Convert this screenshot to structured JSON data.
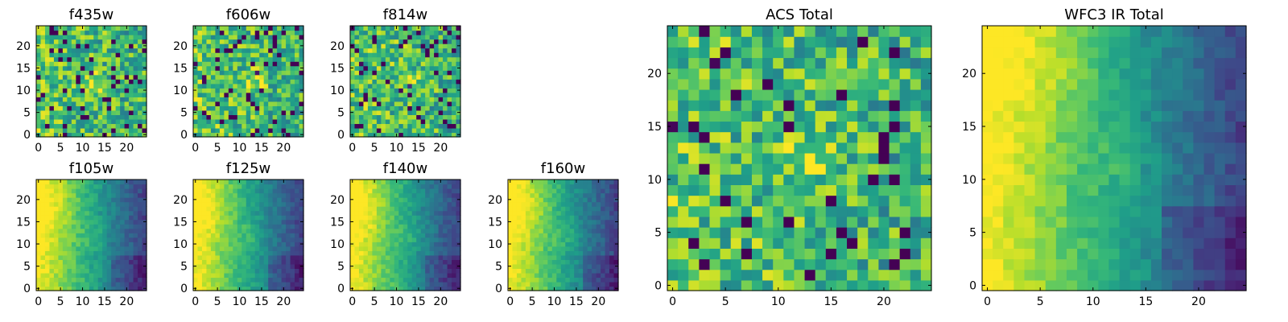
{
  "chart_data": [
    {
      "type": "heatmap",
      "title": "f435w",
      "colormap": "viridis",
      "grid": "25x25",
      "style": "noisy",
      "xticks": [
        "0",
        "5",
        "10",
        "15",
        "20"
      ],
      "yticks": [
        "0",
        "5",
        "10",
        "15",
        "20"
      ],
      "xlim": [
        0,
        24
      ],
      "ylim": [
        0,
        24
      ],
      "peak": [
        13,
        12
      ]
    },
    {
      "type": "heatmap",
      "title": "f606w",
      "colormap": "viridis",
      "grid": "25x25",
      "style": "noisy",
      "xticks": [
        "0",
        "5",
        "10",
        "15",
        "20"
      ],
      "yticks": [
        "0",
        "5",
        "10",
        "15",
        "20"
      ],
      "xlim": [
        0,
        24
      ],
      "ylim": [
        0,
        24
      ],
      "peak": [
        13,
        12
      ]
    },
    {
      "type": "heatmap",
      "title": "f814w",
      "colormap": "viridis",
      "grid": "25x25",
      "style": "noisy",
      "xticks": [
        "0",
        "5",
        "10",
        "15",
        "20"
      ],
      "yticks": [
        "0",
        "5",
        "10",
        "15",
        "20"
      ],
      "xlim": [
        0,
        24
      ],
      "ylim": [
        0,
        24
      ],
      "peak": [
        13,
        12
      ]
    },
    {
      "type": "heatmap",
      "title": "f105w",
      "colormap": "viridis",
      "grid": "25x25",
      "style": "smooth gradient",
      "xticks": [
        "0",
        "5",
        "10",
        "15",
        "20"
      ],
      "yticks": [
        "0",
        "5",
        "10",
        "15",
        "20"
      ],
      "xlim": [
        0,
        24
      ],
      "ylim": [
        0,
        24
      ],
      "peak": [
        2,
        18
      ]
    },
    {
      "type": "heatmap",
      "title": "f125w",
      "colormap": "viridis",
      "grid": "25x25",
      "style": "smooth gradient",
      "xticks": [
        "0",
        "5",
        "10",
        "15",
        "20"
      ],
      "yticks": [
        "0",
        "5",
        "10",
        "15",
        "20"
      ],
      "xlim": [
        0,
        24
      ],
      "ylim": [
        0,
        24
      ],
      "peak": [
        2,
        18
      ]
    },
    {
      "type": "heatmap",
      "title": "f140w",
      "colormap": "viridis",
      "grid": "25x25",
      "style": "smooth gradient",
      "xticks": [
        "0",
        "5",
        "10",
        "15",
        "20"
      ],
      "yticks": [
        "0",
        "5",
        "10",
        "15",
        "20"
      ],
      "xlim": [
        0,
        24
      ],
      "ylim": [
        0,
        24
      ],
      "peak": [
        2,
        18
      ]
    },
    {
      "type": "heatmap",
      "title": "f160w",
      "colormap": "viridis",
      "grid": "25x25",
      "style": "smooth gradient",
      "xticks": [
        "0",
        "5",
        "10",
        "15",
        "20"
      ],
      "yticks": [
        "0",
        "5",
        "10",
        "15",
        "20"
      ],
      "xlim": [
        0,
        24
      ],
      "ylim": [
        0,
        24
      ],
      "peak": [
        2,
        18
      ]
    },
    {
      "type": "heatmap",
      "title": "ACS Total",
      "colormap": "viridis",
      "grid": "25x25",
      "style": "noisy",
      "xticks": [
        "0",
        "5",
        "10",
        "15",
        "20"
      ],
      "yticks": [
        "0",
        "5",
        "10",
        "15",
        "20"
      ],
      "xlim": [
        0,
        24
      ],
      "ylim": [
        0,
        24
      ],
      "peak": [
        13,
        12
      ]
    },
    {
      "type": "heatmap",
      "title": "WFC3 IR Total",
      "colormap": "viridis",
      "grid": "25x25",
      "style": "smooth gradient",
      "xticks": [
        "0",
        "5",
        "10",
        "15",
        "20"
      ],
      "yticks": [
        "0",
        "5",
        "10",
        "15",
        "20"
      ],
      "xlim": [
        0,
        24
      ],
      "ylim": [
        0,
        24
      ],
      "peak": [
        4,
        22
      ]
    }
  ]
}
